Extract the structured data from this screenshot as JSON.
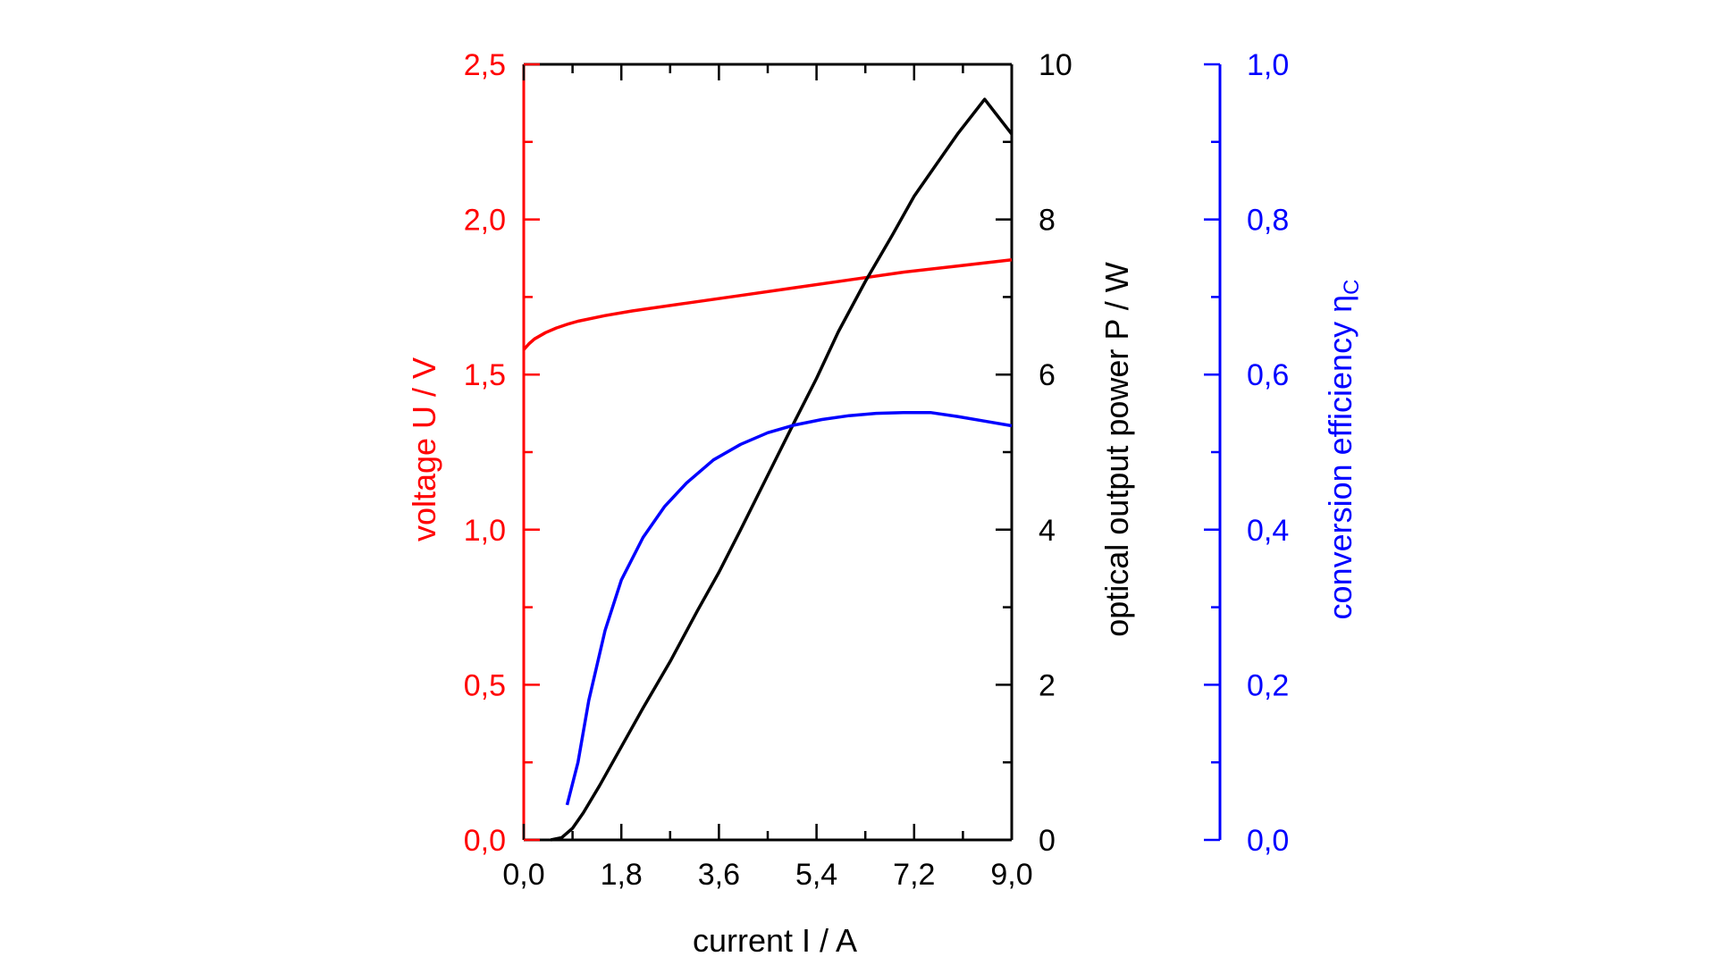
{
  "chart_data": {
    "type": "line",
    "colors": {
      "voltage": "#ff0000",
      "power": "#000000",
      "efficiency": "#0000ff"
    },
    "x_axis": {
      "label": "current I / A",
      "range": [
        0.0,
        9.0
      ],
      "ticks": [
        0.0,
        1.8,
        3.6,
        5.4,
        7.2,
        9.0
      ],
      "tick_labels": [
        "0,0",
        "1,8",
        "3,6",
        "5,4",
        "7,2",
        "9,0"
      ]
    },
    "y_axes": {
      "voltage": {
        "label": "voltage U / V",
        "range": [
          0.0,
          2.5
        ],
        "ticks": [
          0.0,
          0.5,
          1.0,
          1.5,
          2.0,
          2.5
        ],
        "tick_labels": [
          "0,0",
          "0,5",
          "1,0",
          "1,5",
          "2,0",
          "2,5"
        ]
      },
      "power": {
        "label": "optical output power P / W",
        "range": [
          0,
          10
        ],
        "ticks": [
          0,
          2,
          4,
          6,
          8,
          10
        ],
        "tick_labels": [
          "0",
          "2",
          "4",
          "6",
          "8",
          "10"
        ]
      },
      "efficiency": {
        "label": "conversion efficiency η",
        "label_subscript": "C",
        "range": [
          0.0,
          1.0
        ],
        "ticks": [
          0.0,
          0.2,
          0.4,
          0.6,
          0.8,
          1.0
        ],
        "tick_labels": [
          "0,0",
          "0,2",
          "0,4",
          "0,6",
          "0,8",
          "1,0"
        ]
      }
    },
    "series": [
      {
        "name": "voltage",
        "axis": "voltage",
        "x": [
          0.0,
          0.1,
          0.2,
          0.4,
          0.6,
          0.8,
          1.0,
          1.5,
          2.0,
          3.0,
          4.0,
          5.0,
          6.0,
          7.0,
          8.0,
          9.0
        ],
        "y": [
          1.58,
          1.6,
          1.615,
          1.635,
          1.65,
          1.662,
          1.672,
          1.69,
          1.705,
          1.73,
          1.755,
          1.78,
          1.805,
          1.83,
          1.85,
          1.87
        ]
      },
      {
        "name": "optical output power",
        "axis": "power",
        "x": [
          0.5,
          0.7,
          0.9,
          1.1,
          1.4,
          1.8,
          2.2,
          2.7,
          3.2,
          3.6,
          4.0,
          4.5,
          5.0,
          5.4,
          5.8,
          6.3,
          6.8,
          7.2,
          7.6,
          8.0,
          8.5,
          9.0
        ],
        "y": [
          0.0,
          0.03,
          0.15,
          0.35,
          0.7,
          1.2,
          1.7,
          2.3,
          2.95,
          3.45,
          4.0,
          4.7,
          5.4,
          5.95,
          6.55,
          7.2,
          7.8,
          8.3,
          8.7,
          9.1,
          9.55,
          9.1
        ]
      },
      {
        "name": "conversion efficiency",
        "axis": "efficiency",
        "x": [
          0.8,
          1.0,
          1.2,
          1.5,
          1.8,
          2.2,
          2.6,
          3.0,
          3.5,
          4.0,
          4.5,
          5.0,
          5.5,
          6.0,
          6.5,
          7.0,
          7.5,
          8.0,
          8.5,
          9.0
        ],
        "y": [
          0.045,
          0.1,
          0.18,
          0.27,
          0.335,
          0.39,
          0.43,
          0.46,
          0.49,
          0.51,
          0.525,
          0.535,
          0.542,
          0.547,
          0.55,
          0.551,
          0.551,
          0.546,
          0.54,
          0.534
        ]
      }
    ]
  }
}
